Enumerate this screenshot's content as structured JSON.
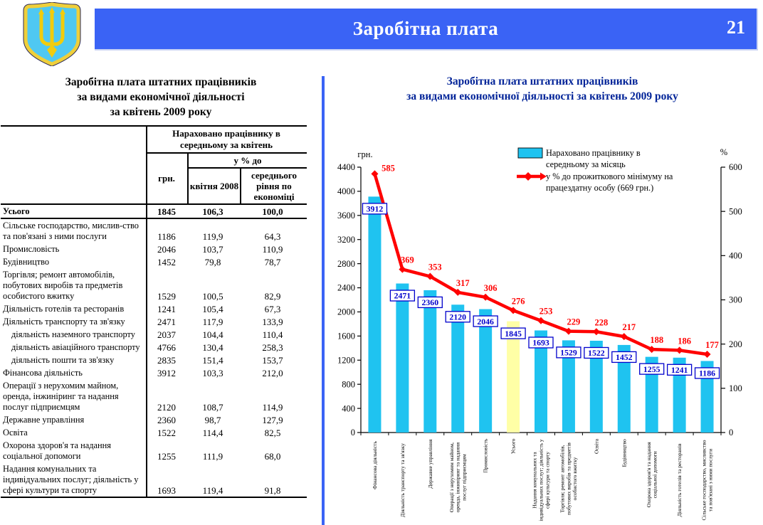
{
  "header": {
    "banner_title": "Заробітна плата",
    "page_number": "21",
    "banner_color": "#3a63f5",
    "coat_of_arms_icon": "ukraine-trident-emblem"
  },
  "table_panel": {
    "title_lines": [
      "Заробітна плата штатних працівників",
      "за видами економічної діяльності",
      "за квітень 2009 року"
    ],
    "columns": {
      "group_header": "Нараховано працівнику в середньому за квітень",
      "unit_col": "грн.",
      "pct_group": "у % до",
      "pct_col_1": "квітня 2008",
      "pct_col_2": "середнього рівня по економіці"
    },
    "rows": [
      {
        "name": "Усього",
        "grn": "1845",
        "pct_apr_2008": "106,3",
        "pct_avg": "100,0",
        "bold": true,
        "underline": true
      },
      {
        "name": "Сільське господарство, мислив-ство та пов'язані з ними послуги",
        "grn": "1186",
        "pct_apr_2008": "119,9",
        "pct_avg": "64,3"
      },
      {
        "name": "Промисловість",
        "grn": "2046",
        "pct_apr_2008": "103,7",
        "pct_avg": "110,9"
      },
      {
        "name": "Будівництво",
        "grn": "1452",
        "pct_apr_2008": "79,8",
        "pct_avg": "78,7"
      },
      {
        "name": "Торгівля; ремонт автомобілів, побутових виробів та предметів особистого вжитку",
        "grn": "1529",
        "pct_apr_2008": "100,5",
        "pct_avg": "82,9"
      },
      {
        "name": "Діяльність готелів та ресторанів",
        "grn": "1241",
        "pct_apr_2008": "105,4",
        "pct_avg": "67,3"
      },
      {
        "name": "Діяльність транспорту та зв'язку",
        "grn": "2471",
        "pct_apr_2008": "117,9",
        "pct_avg": "133,9"
      },
      {
        "name": "діяльність наземного транспорту",
        "grn": "2037",
        "pct_apr_2008": "104,4",
        "pct_avg": "110,4",
        "indent": true
      },
      {
        "name": "діяльність авіаційного транспорту",
        "grn": "4766",
        "pct_apr_2008": "130,4",
        "pct_avg": "258,3",
        "indent": true
      },
      {
        "name": "діяльність пошти та зв'язку",
        "grn": "2835",
        "pct_apr_2008": "151,4",
        "pct_avg": "153,7",
        "indent": true
      },
      {
        "name": "Фінансова діяльність",
        "grn": "3912",
        "pct_apr_2008": "103,3",
        "pct_avg": "212,0"
      },
      {
        "name": "Операції з нерухомим майном, оренда, інжиніринг та надання послуг підприємцям",
        "grn": "2120",
        "pct_apr_2008": "108,7",
        "pct_avg": "114,9"
      },
      {
        "name": "Державне управління",
        "grn": "2360",
        "pct_apr_2008": "98,7",
        "pct_avg": "127,9"
      },
      {
        "name": "Освіта",
        "grn": "1522",
        "pct_apr_2008": "114,4",
        "pct_avg": "82,5"
      },
      {
        "name": "Охорона здоров'я та надання соціальної допомоги",
        "grn": "1255",
        "pct_apr_2008": "111,9",
        "pct_avg": "68,0"
      },
      {
        "name": "Надання комунальних та індивідуальних послуг; діяльність у сфері культури та спорту",
        "grn": "1693",
        "pct_apr_2008": "119,4",
        "pct_avg": "91,8"
      }
    ]
  },
  "chart_panel": {
    "title_lines": [
      "Заробітна плата штатних працівників",
      "за видами економічної діяльності за квітень 2009 року"
    ],
    "title_color": "#002398"
  },
  "chart_data": {
    "type": "bar+line",
    "title": "Заробітна плата штатних працівників за видами економічної діяльності за квітень 2009 року",
    "categories": [
      "Фінансова діяльність",
      "Діяльність транспорту та зв'язку",
      "Державне управління",
      "Операції з нерухомим майном, оренда, інжиніринг та надання послуг підприємцям",
      "Промисловість",
      "Усього",
      "Надання комунальних та індивідуальних послуг; діяльність у сфері культури та спорту",
      "Торгівля; ремонт автомобілів, побутових виробів та предметів особистого вжитку",
      "Освіта",
      "Будівництво",
      "Охорона здоров'я та надання соціальної допомоги",
      "Діяльність готелів та ресторанів",
      "Сільське господарство, мисливство та пов'язані з ними послуги"
    ],
    "category_label_lines": [
      [
        "Фінансова діяльність"
      ],
      [
        "Діяльність транспорту та зв'язку"
      ],
      [
        "Державне управління"
      ],
      [
        "Операції з нерухомим майном,",
        "оренда, інжиніринг та надання",
        "послуг підприємцям"
      ],
      [
        "Промисловість"
      ],
      [
        "Усього"
      ],
      [
        "Надання комунальних та",
        "індивідуальних послуг; діяльність у",
        "сфері культури та спорту"
      ],
      [
        "Торгівля; ремонт автомобілів,",
        "побутових виробів та предметів",
        "особистого вжитку"
      ],
      [
        "Освіта"
      ],
      [
        "Будівництво"
      ],
      [
        "Охорона здоров'я та надання",
        "соціальної допомоги"
      ],
      [
        "Діяльність готелів та ресторанів"
      ],
      [
        "Сільське господарство, мисливство",
        "та пов'язані з ними послуги"
      ]
    ],
    "series": [
      {
        "name": "Нараховано працівнику в середньому за місяць",
        "type": "bar",
        "axis": "left",
        "color": "#1fc3f0",
        "highlight_index": 5,
        "highlight_color": "#ffffa6",
        "values": [
          3912,
          2471,
          2360,
          2120,
          2046,
          1845,
          1693,
          1529,
          1522,
          1452,
          1255,
          1241,
          1186
        ]
      },
      {
        "name": "у % до прожиткового мінімуму на працездатну особу (669 грн.)",
        "type": "line",
        "axis": "right",
        "color": "#ff0000",
        "values": [
          585,
          369,
          353,
          317,
          306,
          276,
          253,
          229,
          228,
          217,
          188,
          186,
          177
        ]
      }
    ],
    "left_axis": {
      "label": "грн.",
      "min": 0,
      "max": 4400,
      "step": 400
    },
    "right_axis": {
      "label": "%",
      "min": 0,
      "max": 600,
      "step": 100
    },
    "legend": {
      "bar_label_lines": [
        "Нараховано працівнику в",
        "середньому за місяць"
      ],
      "line_label_lines": [
        "у % до прожиткового мінімуму на",
        "працездатну особу (669 грн.)"
      ]
    },
    "legend_position": "top-center",
    "grid": false,
    "value_label_color": "#0000cc",
    "line_label_color": "#ff0000"
  }
}
